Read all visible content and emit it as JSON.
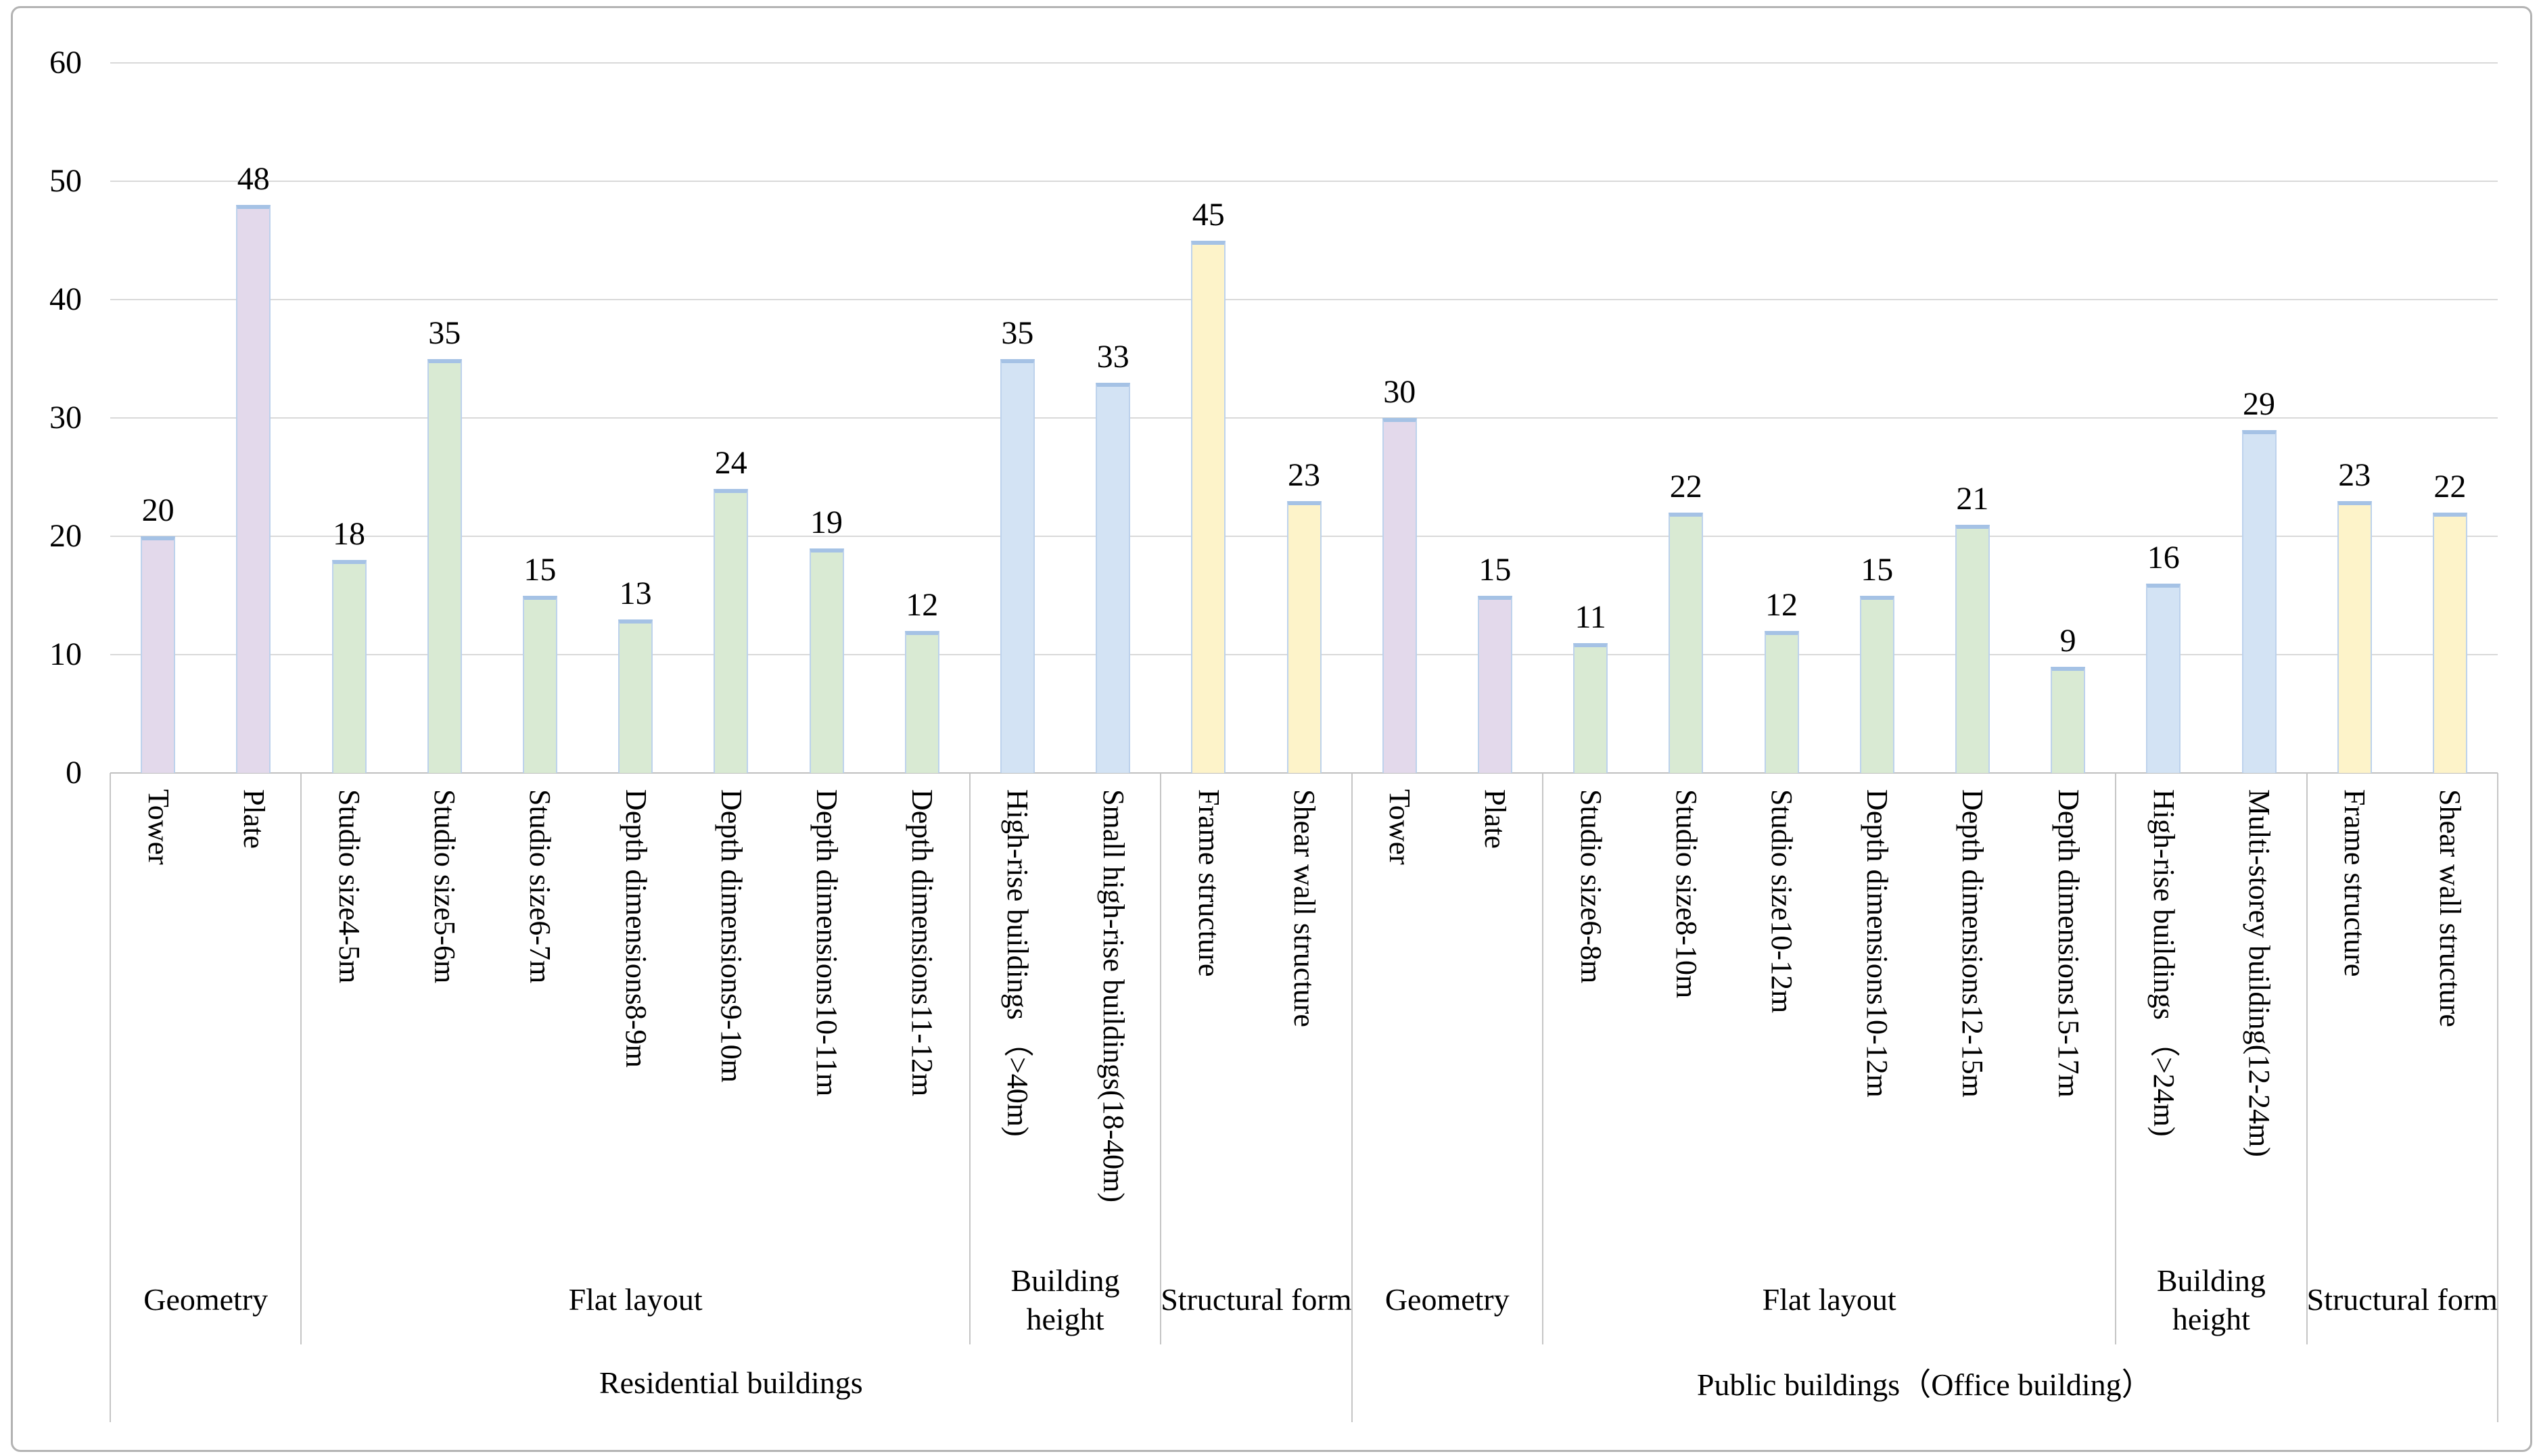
{
  "chart_data": {
    "type": "bar",
    "title": "",
    "xlabel": "",
    "ylabel": "",
    "ylim": [
      0,
      60
    ],
    "yticks": [
      0,
      10,
      20,
      30,
      40,
      50,
      60
    ],
    "gridlines": true,
    "legend": "none",
    "groups": [
      {
        "label": "Residential buildings",
        "subgroups": [
          {
            "label": "Geometry",
            "color": "#e3d9eb",
            "bars": [
              {
                "label": "Tower",
                "value": 20
              },
              {
                "label": "Plate",
                "value": 48
              }
            ]
          },
          {
            "label": "Flat layout",
            "color": "#d9ead3",
            "bars": [
              {
                "label": "Studio size4-5m",
                "value": 18
              },
              {
                "label": "Studio size5-6m",
                "value": 35
              },
              {
                "label": "Studio size6-7m",
                "value": 15
              },
              {
                "label": "Depth dimensions8-9m",
                "value": 13
              },
              {
                "label": "Depth dimensions9-10m",
                "value": 24
              },
              {
                "label": "Depth dimensions10-11m",
                "value": 19
              },
              {
                "label": "Depth dimensions11-12m",
                "value": 12
              }
            ]
          },
          {
            "label": "Building height",
            "color": "#d3e3f4",
            "bars": [
              {
                "label": "High-rise buildings （>40m)",
                "value": 35
              },
              {
                "label": "Small high-rise buildings(18-40m)",
                "value": 33
              }
            ]
          },
          {
            "label": "Structural form",
            "color": "#fdf3c9",
            "bars": [
              {
                "label": "Frame structure",
                "value": 45
              },
              {
                "label": "Shear wall structure",
                "value": 23
              }
            ]
          }
        ]
      },
      {
        "label": "Public buildings（Office building）",
        "subgroups": [
          {
            "label": "Geometry",
            "color": "#e3d9eb",
            "bars": [
              {
                "label": "Tower",
                "value": 30
              },
              {
                "label": "Plate",
                "value": 15
              }
            ]
          },
          {
            "label": "Flat layout",
            "color": "#d9ead3",
            "bars": [
              {
                "label": "Studio size6-8m",
                "value": 11
              },
              {
                "label": "Studio size8-10m",
                "value": 22
              },
              {
                "label": "Studio size10-12m",
                "value": 12
              },
              {
                "label": "Depth dimensions10-12m",
                "value": 15
              },
              {
                "label": "Depth dimensions12-15m",
                "value": 21
              },
              {
                "label": "Depth dimensions15-17m",
                "value": 9
              }
            ]
          },
          {
            "label": "Building height",
            "color": "#d3e3f4",
            "bars": [
              {
                "label": "High-rise buildings （>24m)",
                "value": 16
              },
              {
                "label": "Multi-storey building(12-24m)",
                "value": 29
              }
            ]
          },
          {
            "label": "Structural form",
            "color": "#fdf3c9",
            "bars": [
              {
                "label": "Frame structure",
                "value": 23
              },
              {
                "label": "Shear wall structure",
                "value": 22
              }
            ]
          }
        ]
      }
    ],
    "colors": {
      "bar_top_cap": "#a5c2e5",
      "bar_side_border": "#bdd2ec",
      "gridline": "#d9d9d9",
      "axis_line": "#bfbfbf",
      "separator": "#c5c5c5",
      "text": "#000000",
      "figure_border": "#b3b3b3"
    }
  }
}
